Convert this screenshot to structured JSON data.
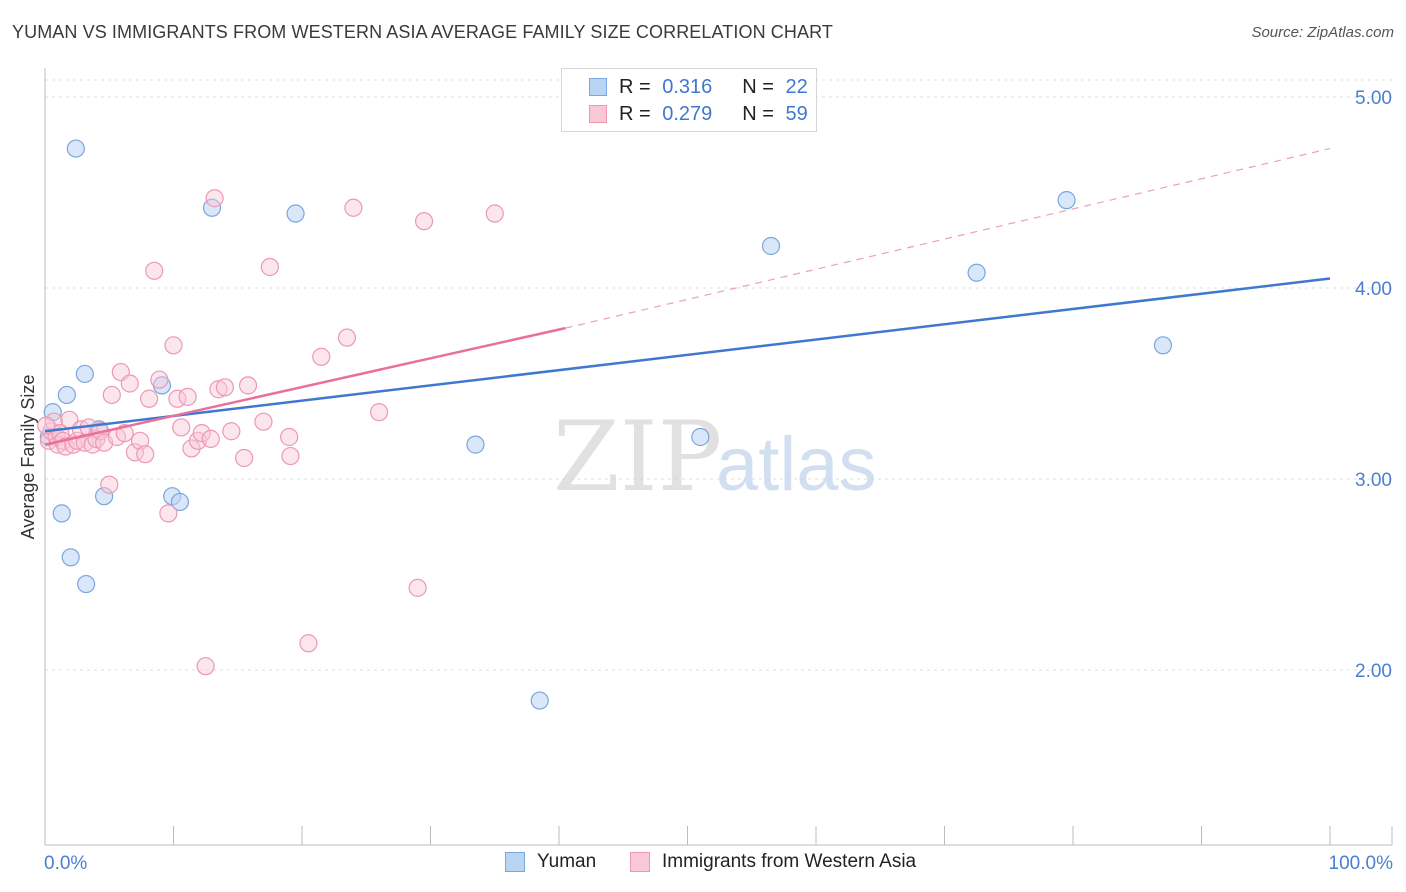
{
  "title": "YUMAN VS IMMIGRANTS FROM WESTERN ASIA AVERAGE FAMILY SIZE CORRELATION CHART",
  "source": "Source: ZipAtlas.com",
  "watermark": {
    "zip": "ZIP",
    "atlas": "atlas"
  },
  "legend": {
    "r_label": "R =",
    "n_label": "N =",
    "series": [
      {
        "name": "Yuman",
        "r": "0.316",
        "n": "22",
        "fill": "#b9d3f3",
        "stroke": "#7aa6e0"
      },
      {
        "name": "Immigrants from Western Asia",
        "r": "0.279",
        "n": "59",
        "fill": "#f9c8d6",
        "stroke": "#ee98b2"
      }
    ]
  },
  "chart_data": {
    "type": "scatter",
    "title": "YUMAN VS IMMIGRANTS FROM WESTERN ASIA AVERAGE FAMILY SIZE CORRELATION CHART",
    "xlabel": "",
    "ylabel": "Average Family Size",
    "xlim": [
      0,
      100
    ],
    "ylim": [
      1.0,
      5.1
    ],
    "x_tick_labels": [
      "0.0%",
      "100.0%"
    ],
    "y_ticks": [
      2.0,
      3.0,
      4.0,
      5.0
    ],
    "y_tick_labels": [
      "2.00",
      "3.00",
      "4.00",
      "5.00"
    ],
    "grid": true,
    "legend_position": "top-center",
    "series": [
      {
        "name": "Yuman",
        "color": "#4a7fcf",
        "points": [
          [
            0.6,
            3.35
          ],
          [
            2.4,
            4.73
          ],
          [
            1.3,
            2.82
          ],
          [
            1.7,
            3.44
          ],
          [
            2.0,
            2.59
          ],
          [
            3.1,
            3.55
          ],
          [
            3.2,
            2.45
          ],
          [
            4.2,
            3.26
          ],
          [
            4.6,
            2.91
          ],
          [
            9.1,
            3.49
          ],
          [
            9.9,
            2.91
          ],
          [
            10.5,
            2.88
          ],
          [
            13.0,
            4.42
          ],
          [
            19.5,
            4.39
          ],
          [
            33.5,
            3.18
          ],
          [
            38.5,
            1.84
          ],
          [
            51.0,
            3.22
          ],
          [
            56.5,
            4.22
          ],
          [
            72.5,
            4.08
          ],
          [
            79.5,
            4.46
          ],
          [
            87.0,
            3.7
          ],
          [
            0.3,
            3.22
          ]
        ],
        "trend": {
          "x": [
            0,
            100
          ],
          "y": [
            3.25,
            4.05
          ],
          "dashed_extension": false
        }
      },
      {
        "name": "Immigrants from Western Asia",
        "color": "#e8709a",
        "points": [
          [
            0.3,
            3.2
          ],
          [
            0.5,
            3.25
          ],
          [
            0.7,
            3.3
          ],
          [
            0.9,
            3.22
          ],
          [
            1.0,
            3.18
          ],
          [
            1.2,
            3.24
          ],
          [
            1.4,
            3.2
          ],
          [
            1.6,
            3.17
          ],
          [
            1.9,
            3.31
          ],
          [
            2.2,
            3.18
          ],
          [
            2.5,
            3.2
          ],
          [
            2.8,
            3.26
          ],
          [
            3.1,
            3.19
          ],
          [
            3.4,
            3.27
          ],
          [
            3.7,
            3.18
          ],
          [
            4.0,
            3.21
          ],
          [
            4.3,
            3.25
          ],
          [
            4.6,
            3.19
          ],
          [
            5.0,
            2.97
          ],
          [
            5.2,
            3.44
          ],
          [
            5.6,
            3.22
          ],
          [
            5.9,
            3.56
          ],
          [
            6.2,
            3.24
          ],
          [
            6.6,
            3.5
          ],
          [
            7.0,
            3.14
          ],
          [
            7.4,
            3.2
          ],
          [
            7.8,
            3.13
          ],
          [
            8.1,
            3.42
          ],
          [
            8.5,
            4.09
          ],
          [
            8.9,
            3.52
          ],
          [
            9.6,
            2.82
          ],
          [
            10.0,
            3.7
          ],
          [
            10.3,
            3.42
          ],
          [
            10.6,
            3.27
          ],
          [
            11.1,
            3.43
          ],
          [
            11.4,
            3.16
          ],
          [
            11.9,
            3.2
          ],
          [
            12.2,
            3.24
          ],
          [
            12.5,
            2.02
          ],
          [
            12.9,
            3.21
          ],
          [
            13.2,
            4.47
          ],
          [
            13.5,
            3.47
          ],
          [
            14.0,
            3.48
          ],
          [
            14.5,
            3.25
          ],
          [
            15.5,
            3.11
          ],
          [
            15.8,
            3.49
          ],
          [
            17.0,
            3.3
          ],
          [
            17.5,
            4.11
          ],
          [
            19.0,
            3.22
          ],
          [
            19.1,
            3.12
          ],
          [
            20.5,
            2.14
          ],
          [
            21.5,
            3.64
          ],
          [
            23.5,
            3.74
          ],
          [
            24.0,
            4.42
          ],
          [
            26.0,
            3.35
          ],
          [
            29.0,
            2.43
          ],
          [
            29.5,
            4.35
          ],
          [
            35.0,
            4.39
          ],
          [
            0.1,
            3.28
          ]
        ],
        "trend": {
          "x": [
            0,
            40.5
          ],
          "y": [
            3.18,
            3.79
          ],
          "dashed_extension": {
            "x": [
              40.5,
              100
            ],
            "y": [
              3.79,
              4.73
            ]
          }
        }
      }
    ]
  }
}
